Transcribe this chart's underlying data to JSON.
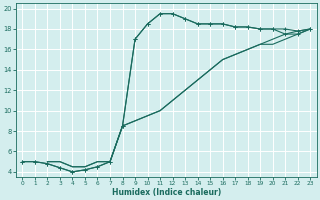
{
  "xlabel": "Humidex (Indice chaleur)",
  "bg_color": "#d4eeee",
  "grid_color": "#b8d8d8",
  "line_color": "#1a6b5e",
  "xlim": [
    -0.5,
    23.5
  ],
  "ylim": [
    3.5,
    20.5
  ],
  "xticks": [
    0,
    1,
    2,
    3,
    4,
    5,
    6,
    7,
    8,
    9,
    10,
    11,
    12,
    13,
    14,
    15,
    16,
    17,
    18,
    19,
    20,
    21,
    22,
    23
  ],
  "yticks": [
    4,
    6,
    8,
    10,
    12,
    14,
    16,
    18,
    20
  ],
  "curve1_x": [
    0,
    1,
    2,
    3,
    4,
    5,
    6,
    7,
    8,
    9,
    10,
    11,
    12,
    13,
    14,
    15,
    16,
    17,
    18,
    19,
    20,
    21,
    22,
    23
  ],
  "curve1_y": [
    5.0,
    5.0,
    4.8,
    4.4,
    4.0,
    4.2,
    4.5,
    5.0,
    8.5,
    17.0,
    18.5,
    19.5,
    19.5,
    19.0,
    18.5,
    18.5,
    18.5,
    18.2,
    18.2,
    18.0,
    18.0,
    18.0,
    17.8,
    18.0
  ],
  "curve2_x": [
    0,
    1,
    2,
    3,
    4,
    5,
    6,
    7,
    8,
    9,
    10,
    11,
    12,
    13,
    14,
    15,
    16,
    17,
    18,
    19,
    20,
    21,
    22,
    23
  ],
  "curve2_y": [
    5.0,
    5.0,
    4.8,
    4.4,
    4.0,
    4.2,
    4.5,
    5.0,
    8.5,
    17.0,
    18.5,
    19.5,
    19.5,
    19.0,
    18.5,
    18.5,
    18.5,
    18.2,
    18.2,
    18.0,
    18.0,
    17.5,
    17.5,
    18.0
  ],
  "line3_x": [
    2,
    3,
    4,
    5,
    6,
    7,
    8,
    9,
    10,
    11,
    12,
    13,
    14,
    15,
    16,
    17,
    18,
    19,
    20,
    21,
    22,
    23
  ],
  "line3_y": [
    5.0,
    5.0,
    4.5,
    4.5,
    5.0,
    5.0,
    8.5,
    9.0,
    9.5,
    10.0,
    11.0,
    12.0,
    13.0,
    14.0,
    15.0,
    15.5,
    16.0,
    16.5,
    17.0,
    17.5,
    17.8,
    18.0
  ],
  "line4_x": [
    2,
    3,
    4,
    5,
    6,
    7,
    8,
    9,
    10,
    11,
    12,
    13,
    14,
    15,
    16,
    17,
    18,
    19,
    20,
    21,
    22,
    23
  ],
  "line4_y": [
    5.0,
    5.0,
    4.5,
    4.5,
    5.0,
    5.0,
    8.5,
    9.0,
    9.5,
    10.0,
    11.0,
    12.0,
    13.0,
    14.0,
    15.0,
    15.5,
    16.0,
    16.5,
    16.5,
    17.0,
    17.5,
    18.0
  ]
}
